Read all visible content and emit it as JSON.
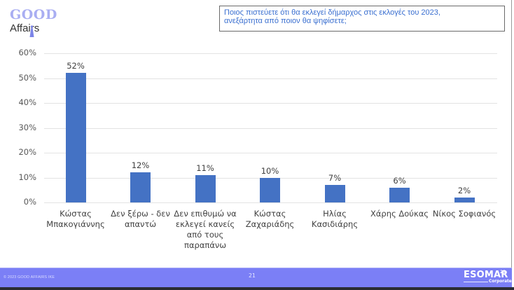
{
  "logo": {
    "line1": "GOOD",
    "line2": "Affairs",
    "colors": {
      "good": "#a9aef2",
      "affairs": "#333333"
    }
  },
  "question": {
    "text_line1": "Ποιος πιστεύετε ότι θα εκλεγεί δήμαρχος στις εκλογές του 2023,",
    "text_line2": "ανεξάρτητα από ποιον θα ψηφίσετε;"
  },
  "chart_data": {
    "type": "bar",
    "title": "Ποιος πιστεύετε ότι θα εκλεγεί δήμαρχος στις εκλογές του 2023, ανεξάρτητα από ποιον θα ψηφίσετε;",
    "categories": [
      "Κώστας Μπακογιάννης",
      "Δεν ξέρω - δεν απαντώ",
      "Δεν επιθυμώ να εκλεγεί κανείς από τους παραπάνω",
      "Κώστας Ζαχαριάδης",
      "Ηλίας Κασιδιάρης",
      "Χάρης Δούκας",
      "Νίκος Σοφιανός"
    ],
    "category_lines": [
      [
        "Κώστας",
        "Μπακογιάννης"
      ],
      [
        "Δεν ξέρω - δεν",
        "απαντώ"
      ],
      [
        "Δεν επιθυμώ να",
        "εκλεγεί κανείς",
        "από τους",
        "παραπάνω"
      ],
      [
        "Κώστας",
        "Ζαχαριάδης"
      ],
      [
        "Ηλίας",
        "Κασιδιάρης"
      ],
      [
        "Χάρης Δούκας"
      ],
      [
        "Νίκος Σοφιανός"
      ]
    ],
    "values": [
      52,
      12,
      11,
      10,
      7,
      6,
      2
    ],
    "value_labels": [
      "52%",
      "12%",
      "11%",
      "10%",
      "7%",
      "6%",
      "2%"
    ],
    "xlabel": "",
    "ylabel": "",
    "ylim": [
      0,
      60
    ],
    "y_ticks": [
      "0%",
      "10%",
      "20%",
      "30%",
      "40%",
      "50%",
      "60%"
    ],
    "grid": true,
    "legend": null,
    "bar_color": "#4472c4"
  },
  "footer": {
    "copyright": "© 2023 GOOD AFFAIRS IKE",
    "page_number": "21",
    "badge_main": "ESOMAR",
    "badge_sup": "23",
    "badge_sub": "Corporate",
    "background": "#7b7ff6"
  }
}
